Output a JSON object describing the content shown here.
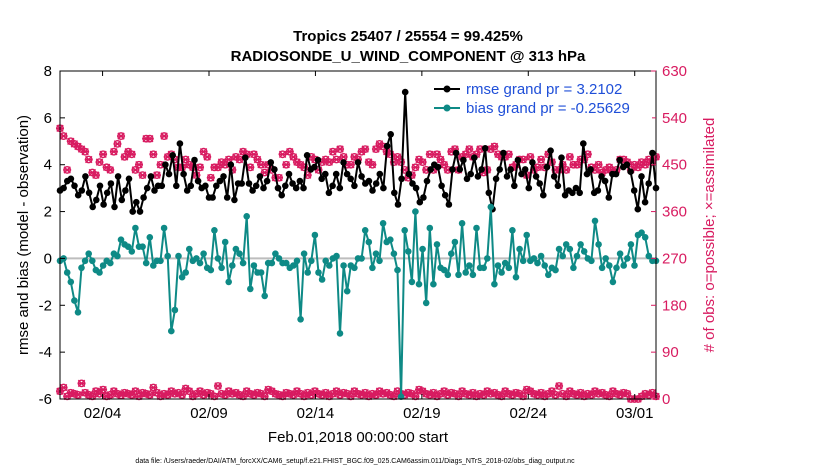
{
  "chart_data": {
    "type": "line",
    "title_line1": "Tropics 25407 / 25554 = 99.425%",
    "title_line2": "RADIOSONDE_U_WIND_COMPONENT @ 313 hPa",
    "ylabel": "rmse and bias (model - observation)",
    "y2label": "# of obs: o=possible; ×=assimilated",
    "xlabel": "Feb.01,2018 00:00:00 start",
    "footer": "data file: /Users/raeder/DAI/ATM_forcXX/CAM6_setup/f.e21.FHIST_BGC.f09_025.CAM6assim.011/Diags_NTrS_2018-02/obs_diag_output.nc",
    "xlim": [
      1,
      29
    ],
    "ylim": [
      -6,
      8
    ],
    "y2lim": [
      0,
      630
    ],
    "x_ticks": [
      3,
      8,
      13,
      18,
      23,
      28
    ],
    "x_tick_labels": [
      "02/04",
      "02/09",
      "02/14",
      "02/19",
      "02/24",
      "03/01"
    ],
    "y_ticks": [
      -6,
      -4,
      -2,
      0,
      2,
      4,
      6,
      8
    ],
    "y_tick_labels": [
      "-6",
      "-4",
      "-2",
      "0",
      "2",
      "4",
      "6",
      "8"
    ],
    "y2_ticks": [
      0,
      90,
      180,
      270,
      360,
      450,
      540,
      630
    ],
    "y2_tick_labels": [
      "0",
      "90",
      "180",
      "270",
      "360",
      "450",
      "540",
      "630"
    ],
    "series": [
      {
        "name": "rmse grand pr = 3.2102",
        "color": "#000000",
        "values": [
          2.9,
          3.0,
          3.3,
          3.4,
          3.1,
          2.7,
          2.9,
          3.5,
          2.8,
          2.2,
          2.5,
          3.1,
          2.3,
          2.8,
          3.2,
          2.2,
          3.5,
          2.5,
          2.9,
          3.4,
          2.0,
          2.4,
          2.0,
          2.6,
          3.0,
          3.5,
          2.9,
          3.1,
          3.1,
          4.0,
          3.6,
          4.4,
          3.1,
          4.9,
          3.6,
          2.9,
          3.1,
          4.2,
          3.3,
          3.0,
          3.1,
          2.6,
          2.6,
          3.1,
          3.3,
          3.5,
          2.6,
          4.0,
          2.5,
          3.2,
          3.2,
          4.3,
          3.2,
          2.9,
          3.1,
          3.5,
          3.0,
          3.3,
          4.1,
          3.8,
          3.0,
          2.7,
          3.1,
          3.6,
          3.2,
          3.0,
          3.3,
          3.0,
          4.4,
          3.8,
          3.9,
          4.2,
          3.4,
          3.6,
          2.8,
          3.1,
          3.6,
          3.0,
          4.1,
          3.6,
          3.4,
          3.1,
          4.1,
          3.5,
          3.2,
          3.3,
          2.9,
          3.2,
          3.6,
          3.0,
          4.8,
          5.3,
          2.8,
          2.3,
          3.4,
          7.1,
          3.6,
          3.2,
          3.0,
          2.4,
          2.6,
          3.3,
          3.8,
          4.0,
          3.9,
          3.1,
          2.7,
          2.3,
          3.8,
          4.5,
          3.8,
          4.2,
          3.4,
          3.6,
          4.3,
          3.5,
          3.8,
          4.7,
          2.8,
          2.1,
          3.4,
          3.8,
          4.5,
          3.5,
          3.8,
          3.1,
          4.2,
          3.6,
          3.8,
          3.0,
          4.1,
          3.5,
          3.2,
          2.7,
          3.9,
          4.6,
          3.5,
          3.1,
          4.3,
          2.7,
          2.9,
          2.8,
          3.0,
          2.8,
          4.9,
          3.6,
          3.8,
          2.8,
          2.9,
          3.5,
          3.3,
          2.6,
          3.6,
          3.6,
          4.2,
          3.9,
          4.0,
          3.7,
          2.9,
          2.1,
          3.5,
          2.4,
          3.2,
          4.5,
          3.0
        ]
      },
      {
        "name": "bias grand pr = -0.25629",
        "color": "#0e8a86",
        "values": [
          -0.1,
          0.0,
          -0.6,
          -1.0,
          -1.8,
          -2.3,
          -0.4,
          -0.1,
          0.2,
          -0.1,
          -0.5,
          -0.6,
          -0.3,
          -0.1,
          -0.2,
          0.2,
          0.1,
          0.8,
          0.6,
          0.5,
          0.3,
          1.3,
          0.5,
          0.5,
          -0.2,
          0.9,
          -0.3,
          -0.1,
          -0.1,
          1.3,
          0.1,
          -3.1,
          -2.2,
          0.1,
          -0.8,
          -0.6,
          0.4,
          -0.1,
          0.0,
          -0.2,
          0.2,
          -0.4,
          -0.5,
          1.2,
          0.0,
          -0.4,
          0.7,
          -1.0,
          -0.3,
          0.4,
          0.2,
          -0.2,
          1.8,
          -1.3,
          -0.3,
          -0.6,
          -0.6,
          -1.6,
          -0.2,
          -0.2,
          0.2,
          0.0,
          -0.2,
          -0.2,
          -0.4,
          -0.3,
          -0.1,
          -2.6,
          0.2,
          -0.6,
          -0.1,
          1.0,
          -0.6,
          -0.9,
          -0.1,
          -0.3,
          0.0,
          0.1,
          -3.2,
          -0.3,
          -1.4,
          -0.3,
          -0.4,
          0.0,
          0.0,
          1.2,
          0.7,
          -0.4,
          0.2,
          -0.1,
          1.5,
          0.7,
          0.8,
          0.2,
          -0.5,
          -5.9,
          1.2,
          0.3,
          -1.0,
          2.0,
          -1.1,
          0.4,
          -1.9,
          1.3,
          -1.1,
          0.6,
          -0.4,
          -0.5,
          -0.7,
          0.2,
          0.7,
          -0.7,
          1.5,
          -0.6,
          -0.3,
          -0.7,
          1.3,
          -0.4,
          -0.4,
          0.0,
          2.2,
          -1.1,
          -0.3,
          -0.6,
          -0.2,
          -0.4,
          1.2,
          -0.8,
          0.4,
          -0.1,
          1.0,
          -0.1,
          0.0,
          -0.2,
          0.1,
          -0.3,
          -0.7,
          -0.4,
          -0.5,
          0.4,
          0.1,
          0.6,
          0.4,
          -0.4,
          0.1,
          0.6,
          0.3,
          0.0,
          -0.1,
          1.6,
          0.6,
          -0.4,
          0.0,
          -0.3,
          -1.0,
          -0.4,
          0.2,
          -0.3,
          0.0,
          0.6,
          -0.3,
          1.0,
          1.1,
          0.9,
          0.1,
          -0.1,
          -0.1
        ]
      }
    ],
    "obs_possible_counts": [
      520,
      505,
      440,
      495,
      490,
      485,
      480,
      475,
      460,
      435,
      430,
      455,
      470,
      445,
      440,
      475,
      490,
      505,
      465,
      475,
      470,
      440,
      450,
      430,
      500,
      500,
      470,
      430,
      450,
      505,
      465,
      470,
      460,
      445,
      445,
      460,
      450,
      445,
      430,
      445,
      475,
      465,
      425,
      445,
      445,
      455,
      450,
      460,
      440,
      465,
      460,
      475,
      470,
      445,
      470,
      460,
      450,
      435,
      450,
      440,
      425,
      425,
      470,
      450,
      475,
      465,
      455,
      450,
      445,
      430,
      465,
      460,
      440,
      455,
      460,
      455,
      475,
      460,
      480,
      465,
      450,
      450,
      465,
      460,
      475,
      480,
      455,
      450,
      480,
      490,
      485,
      475,
      470,
      455,
      465,
      455,
      440,
      425,
      430,
      445,
      460,
      455,
      440,
      470,
      440,
      470,
      460,
      450,
      440,
      475,
      480,
      440,
      465,
      470,
      480,
      465,
      470,
      480,
      435,
      440,
      480,
      485,
      470,
      465,
      465,
      470,
      445,
      450,
      460,
      460,
      430,
      465,
      440,
      445,
      460,
      445,
      470,
      455,
      440,
      440,
      450,
      440,
      465,
      450,
      450,
      460,
      460,
      470,
      445,
      440,
      450,
      435,
      440,
      445,
      435,
      440,
      460,
      460,
      455,
      440,
      450,
      445,
      455,
      450,
      460,
      455,
      465
    ],
    "obs_assimilated_counts": [
      15,
      22,
      5,
      12,
      10,
      8,
      30,
      12,
      8,
      5,
      15,
      10,
      18,
      5,
      8,
      15,
      10,
      7,
      12,
      10,
      8,
      15,
      5,
      12,
      10,
      8,
      22,
      12,
      5,
      10,
      8,
      15,
      10,
      12,
      8,
      20,
      15,
      5,
      10,
      15,
      8,
      12,
      10,
      5,
      25,
      10,
      8,
      15,
      10,
      12,
      8,
      5,
      15,
      10,
      8,
      12,
      10,
      5,
      18,
      15,
      10,
      8,
      5,
      12,
      10,
      8,
      15,
      10,
      5,
      12,
      8,
      15,
      10,
      8,
      12,
      5,
      10,
      15,
      8,
      12,
      10,
      5,
      15,
      10,
      8,
      12,
      5,
      10,
      8,
      15,
      10,
      12,
      8,
      5,
      15,
      10,
      8,
      12,
      10,
      5,
      18,
      15,
      10,
      8,
      12,
      5,
      10,
      15,
      8,
      12,
      10,
      5,
      15,
      10,
      8,
      12,
      5,
      10,
      8,
      15,
      10,
      12,
      8,
      5,
      15,
      10,
      8,
      12,
      10,
      5,
      18,
      15,
      10,
      8,
      12,
      5,
      10,
      15,
      8,
      25,
      10,
      5,
      15,
      10,
      8,
      12,
      5,
      10,
      8,
      15,
      10,
      12,
      8,
      5,
      15,
      10,
      8,
      12,
      10,
      0,
      0,
      0,
      5,
      10,
      8,
      12,
      5
    ],
    "obs_color": "#d81b60",
    "zero_line_color": "#bdbdbd"
  }
}
